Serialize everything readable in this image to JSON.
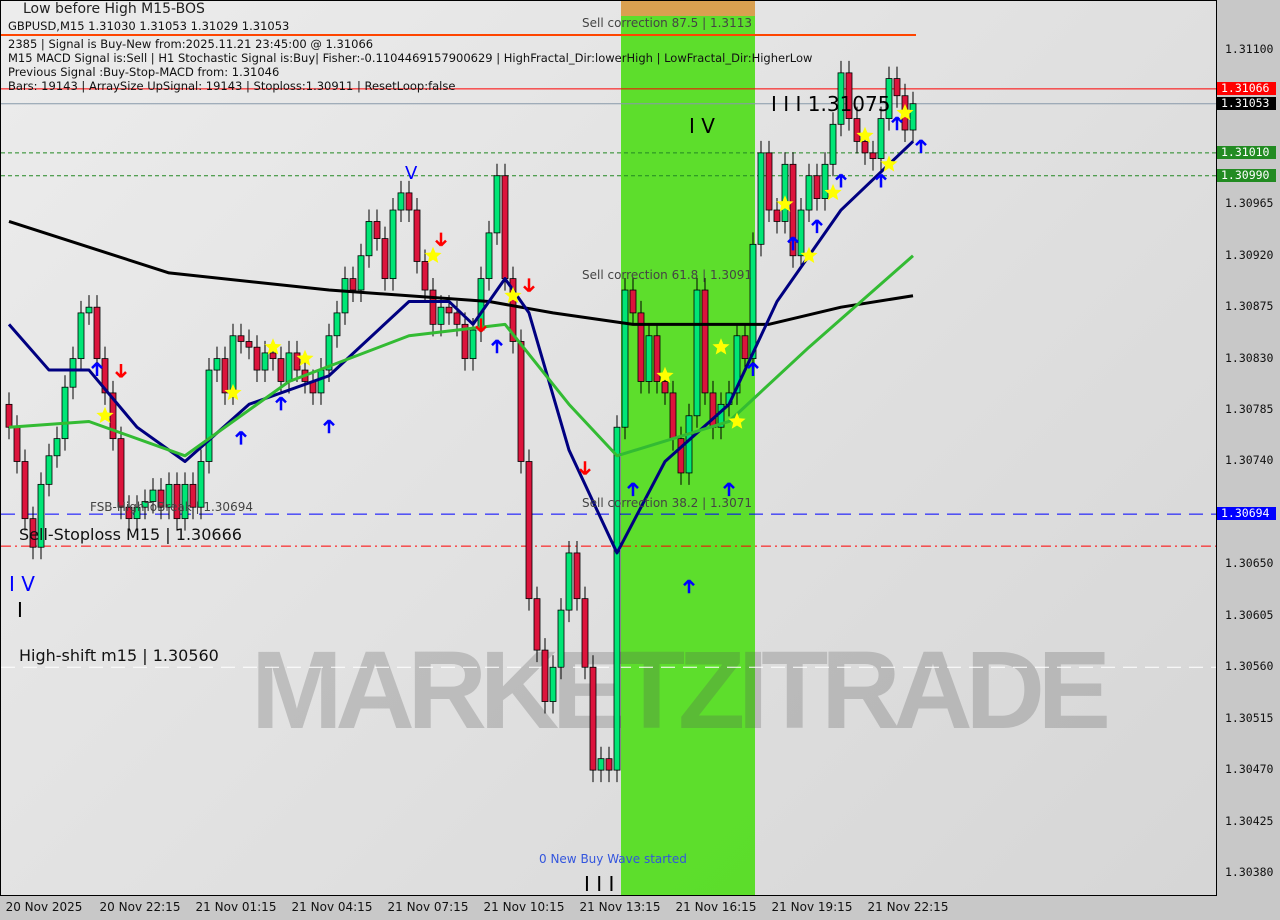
{
  "header": {
    "top_label": "Low before High   M15-BOS",
    "symbol_line": "GBPUSD,M15  1.31030 1.31053 1.31029 1.31053",
    "info_lines": [
      "2385 | Signal is Buy-New from:2025.11.21 23:45:00 @ 1.31066",
      "M15 MACD Signal is:Sell | H1 Stochastic Signal is:Buy| Fisher:-0.1104469157900629 | HighFractal_Dir:lowerHigh | LowFractal_Dir:HigherLow",
      "Previous Signal :Buy-Stop-MACD from: 1.31046",
      "Bars: 19143 | ArraySize UpSignal: 19143 | Stoploss:1.30911 | ResetLoop:false"
    ]
  },
  "annotations": {
    "sell_correction_875": "Sell correction 87.5 | 1.3113",
    "wave_iii_price": "I I I  1.31075",
    "wave_iv_top": "I V",
    "wave_v": "V",
    "sell_correction_618": "Sell correction 61.8 | 1.3091",
    "sell_correction_382": "Sell correction 38.2 | 1.3071",
    "fsb_high_to_break": "FSB-HighToBreak | 1.30694",
    "sell_stoploss": "Sell-Stoploss M15 | 1.30666",
    "wave_iv_left": "I V",
    "wave_i_left": "I",
    "high_shift": "High-shift m15 | 1.30560",
    "wave_iii_bottom": "I I I",
    "new_buy_wave": "0 New Buy Wave started",
    "watermark": "MARKETZITRADE"
  },
  "colors": {
    "bull": "#00e676",
    "bear": "#dc143c",
    "zone": "#55dd22",
    "ma_slow": "#000000",
    "ma_fast": "#000080",
    "ma_mid": "#33bb33",
    "up_arrow": "#0000ff",
    "down_arrow": "#ff0000",
    "star": "#ffff00"
  },
  "chart_data": {
    "type": "candlestick",
    "symbol": "GBPUSD",
    "timeframe": "M15",
    "ylim": [
      1.3035,
      1.31145
    ],
    "y_ticks": [
      "1.31100",
      "1.30965",
      "1.30920",
      "1.30875",
      "1.30830",
      "1.30785",
      "1.30740",
      "1.30650",
      "1.30605",
      "1.30560",
      "1.30515",
      "1.30470",
      "1.30425",
      "1.30380"
    ],
    "x_ticks": [
      {
        "bar": 4,
        "label": "20 Nov 2025"
      },
      {
        "bar": 16,
        "label": "20 Nov 22:15"
      },
      {
        "bar": 28,
        "label": "21 Nov 01:15"
      },
      {
        "bar": 40,
        "label": "21 Nov 04:15"
      },
      {
        "bar": 52,
        "label": "21 Nov 07:15"
      },
      {
        "bar": 64,
        "label": "21 Nov 10:15"
      },
      {
        "bar": 76,
        "label": "21 Nov 13:15"
      },
      {
        "bar": 88,
        "label": "21 Nov 16:15"
      },
      {
        "bar": 100,
        "label": "21 Nov 19:15"
      },
      {
        "bar": 112,
        "label": "21 Nov 22:15"
      }
    ],
    "first_open": 1.3079,
    "close": [
      1.3077,
      1.3074,
      1.3069,
      1.30665,
      1.3072,
      1.30745,
      1.3076,
      1.30805,
      1.3083,
      1.3087,
      1.30875,
      1.3083,
      1.308,
      1.3076,
      1.307,
      1.3069,
      1.307,
      1.30705,
      1.30715,
      1.307,
      1.3072,
      1.3069,
      1.3072,
      1.307,
      1.3074,
      1.3082,
      1.3083,
      1.308,
      1.3085,
      1.30845,
      1.3084,
      1.3082,
      1.30835,
      1.3083,
      1.3081,
      1.30835,
      1.3082,
      1.3081,
      1.308,
      1.3082,
      1.3085,
      1.3087,
      1.309,
      1.3089,
      1.3092,
      1.3095,
      1.30935,
      1.309,
      1.3096,
      1.30975,
      1.3096,
      1.30915,
      1.3089,
      1.3086,
      1.30875,
      1.3087,
      1.3086,
      1.3083,
      1.30855,
      1.309,
      1.3094,
      1.3099,
      1.309,
      1.30845,
      1.3074,
      1.3062,
      1.30575,
      1.3053,
      1.3056,
      1.3061,
      1.3066,
      1.3062,
      1.3056,
      1.3047,
      1.3048,
      1.3047,
      1.3077,
      1.3089,
      1.3087,
      1.3081,
      1.3085,
      1.3081,
      1.308,
      1.3076,
      1.3073,
      1.3078,
      1.3089,
      1.308,
      1.3077,
      1.3079,
      1.308,
      1.3085,
      1.3083,
      1.3093,
      1.3101,
      1.3096,
      1.3095,
      1.31,
      1.3092,
      1.3096,
      1.3099,
      1.3097,
      1.31,
      1.31035,
      1.3108,
      1.3104,
      1.3102,
      1.3101,
      1.31005,
      1.3104,
      1.31075,
      1.3106,
      1.3103,
      1.31053
    ],
    "moving_averages": [
      {
        "color": "ma_slow",
        "points": [
          [
            0,
            1.3095
          ],
          [
            20,
            1.30905
          ],
          [
            40,
            1.3089
          ],
          [
            60,
            1.3088
          ],
          [
            68,
            1.3087
          ],
          [
            78,
            1.3086
          ],
          [
            95,
            1.3086
          ],
          [
            104,
            1.30875
          ],
          [
            113,
            1.30885
          ]
        ]
      },
      {
        "color": "ma_fast",
        "points": [
          [
            0,
            1.3086
          ],
          [
            5,
            1.3082
          ],
          [
            10,
            1.3082
          ],
          [
            16,
            1.3077
          ],
          [
            22,
            1.3074
          ],
          [
            30,
            1.3079
          ],
          [
            40,
            1.30815
          ],
          [
            50,
            1.3088
          ],
          [
            55,
            1.3088
          ],
          [
            58,
            1.3086
          ],
          [
            62,
            1.309
          ],
          [
            65,
            1.3087
          ],
          [
            70,
            1.3075
          ],
          [
            76,
            1.3066
          ],
          [
            82,
            1.3074
          ],
          [
            90,
            1.3079
          ],
          [
            96,
            1.3088
          ],
          [
            104,
            1.3096
          ],
          [
            113,
            1.3102
          ]
        ]
      },
      {
        "color": "ma_mid",
        "points": [
          [
            0,
            1.3077
          ],
          [
            10,
            1.30775
          ],
          [
            22,
            1.30745
          ],
          [
            35,
            1.3081
          ],
          [
            50,
            1.3085
          ],
          [
            62,
            1.3086
          ],
          [
            70,
            1.3079
          ],
          [
            76,
            1.30745
          ],
          [
            90,
            1.30775
          ],
          [
            100,
            1.3084
          ],
          [
            113,
            1.3092
          ]
        ]
      }
    ],
    "price_levels": [
      {
        "price": 1.31066,
        "color": "#ff0000",
        "style": "solid",
        "tag": "1.31066",
        "tag_bg": "#ff0000"
      },
      {
        "price": 1.31053,
        "color": "#8899aa",
        "style": "solid",
        "tag": "1.31053",
        "tag_bg": "#000000"
      },
      {
        "price": 1.3101,
        "color": "#228822",
        "style": "dotted",
        "tag": "1.31010",
        "tag_bg": "#228b22"
      },
      {
        "price": 1.3099,
        "color": "#228822",
        "style": "dotted",
        "tag": "1.30990",
        "tag_bg": "#228b22"
      },
      {
        "price": 1.30694,
        "color": "#0000ff",
        "style": "dashed",
        "tag": "1.30694",
        "tag_bg": "#0000ff"
      },
      {
        "price": 1.30666,
        "color": "#ff0000",
        "style": "dashdot",
        "tag": "",
        "tag_bg": ""
      },
      {
        "price": 1.3056,
        "color": "#ffffff",
        "style": "dashed",
        "tag": "",
        "tag_bg": ""
      }
    ],
    "zone": {
      "from_bar": 77,
      "to_bar": 94
    },
    "signals": [
      {
        "bar": 11,
        "price": 1.3082,
        "type": "up"
      },
      {
        "bar": 14,
        "price": 1.3082,
        "type": "down"
      },
      {
        "bar": 29,
        "price": 1.3076,
        "type": "up"
      },
      {
        "bar": 34,
        "price": 1.3079,
        "type": "up"
      },
      {
        "bar": 40,
        "price": 1.3077,
        "type": "up"
      },
      {
        "bar": 54,
        "price": 1.30935,
        "type": "down"
      },
      {
        "bar": 59,
        "price": 1.3086,
        "type": "down"
      },
      {
        "bar": 61,
        "price": 1.3084,
        "type": "up"
      },
      {
        "bar": 65,
        "price": 1.30895,
        "type": "down"
      },
      {
        "bar": 72,
        "price": 1.30735,
        "type": "down"
      },
      {
        "bar": 78,
        "price": 1.30715,
        "type": "up"
      },
      {
        "bar": 85,
        "price": 1.3063,
        "type": "up"
      },
      {
        "bar": 90,
        "price": 1.30715,
        "type": "up"
      },
      {
        "bar": 93,
        "price": 1.3082,
        "type": "up"
      },
      {
        "bar": 98,
        "price": 1.3093,
        "type": "up"
      },
      {
        "bar": 101,
        "price": 1.30945,
        "type": "up"
      },
      {
        "bar": 104,
        "price": 1.30985,
        "type": "up"
      },
      {
        "bar": 109,
        "price": 1.30985,
        "type": "up"
      },
      {
        "bar": 111,
        "price": 1.31035,
        "type": "up"
      },
      {
        "bar": 114,
        "price": 1.31015,
        "type": "up"
      },
      {
        "bar": 12,
        "price": 1.3078,
        "type": "star"
      },
      {
        "bar": 28,
        "price": 1.308,
        "type": "star"
      },
      {
        "bar": 33,
        "price": 1.3084,
        "type": "star"
      },
      {
        "bar": 37,
        "price": 1.3083,
        "type": "star"
      },
      {
        "bar": 53,
        "price": 1.3092,
        "type": "star"
      },
      {
        "bar": 63,
        "price": 1.30885,
        "type": "star"
      },
      {
        "bar": 82,
        "price": 1.30815,
        "type": "star"
      },
      {
        "bar": 89,
        "price": 1.3084,
        "type": "star"
      },
      {
        "bar": 91,
        "price": 1.30775,
        "type": "star"
      },
      {
        "bar": 97,
        "price": 1.30965,
        "type": "star"
      },
      {
        "bar": 100,
        "price": 1.3092,
        "type": "star"
      },
      {
        "bar": 103,
        "price": 1.30975,
        "type": "star"
      },
      {
        "bar": 107,
        "price": 1.31025,
        "type": "star"
      },
      {
        "bar": 110,
        "price": 1.31,
        "type": "star"
      },
      {
        "bar": 112,
        "price": 1.31045,
        "type": "star"
      }
    ]
  }
}
